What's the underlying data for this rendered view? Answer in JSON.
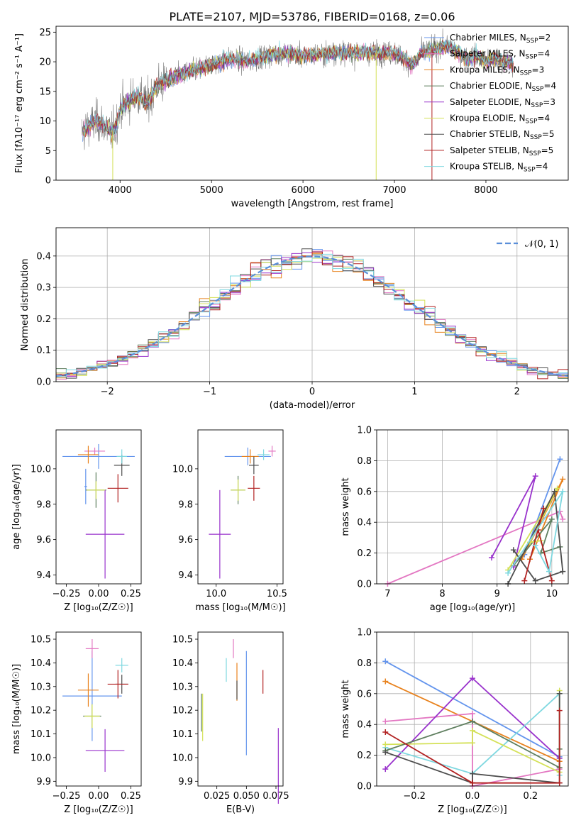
{
  "colors": {
    "cm": "#6495ED",
    "sm": "#E377C2",
    "km": "#E8821E",
    "ce": "#5F7F5F",
    "se": "#9932CC",
    "ke": "#D4E157",
    "cs": "#4D4D4D",
    "ss": "#B22222",
    "ks": "#7FD8E0",
    "gauss": "#5B8FD9",
    "grid": "#b0b0b0"
  },
  "chart_data": [
    {
      "id": "spectrum",
      "type": "line",
      "title": "PLATE=2107, MJD=53786, FIBERID=0168, z=0.06",
      "xlabel": "wavelength [Angstrom, rest frame]",
      "ylabel": "Flux [fλ10⁻¹⁷ erg cm⁻² s⁻¹ A⁻¹]",
      "xlim": [
        3300,
        8900
      ],
      "ylim": [
        0,
        26
      ],
      "xticks": [
        4000,
        5000,
        6000,
        7000,
        8000
      ],
      "yticks": [
        0,
        5,
        10,
        15,
        20,
        25
      ],
      "grid": false,
      "legend": "right",
      "continuum": {
        "x": [
          3580,
          3650,
          3750,
          3850,
          3900,
          3950,
          4000,
          4100,
          4200,
          4300,
          4400,
          4600,
          4800,
          5000,
          5200,
          5400,
          5600,
          5800,
          6000,
          6200,
          6400,
          6600,
          6800,
          7000,
          7100,
          7200,
          7300,
          7400,
          7500,
          7600,
          7700,
          7800,
          7900,
          8000,
          8100,
          8200,
          8300
        ],
        "y": [
          8,
          9,
          10,
          9,
          8,
          9,
          12,
          13.5,
          14.5,
          13,
          16,
          17.5,
          18.5,
          19.5,
          20.5,
          20,
          21,
          21.5,
          21,
          21.3,
          21.5,
          21.5,
          21.5,
          21.5,
          20.5,
          19.5,
          21.5,
          22,
          22.5,
          22.5,
          21.5,
          20.5,
          21,
          20,
          20.5,
          20,
          19.5
        ]
      },
      "series": [
        {
          "label": "Chabrier MILES, N",
          "sub": "SSP",
          "val": "=2",
          "color": "cm"
        },
        {
          "label": "Salpeter MILES, N",
          "sub": "SSP",
          "val": "=4",
          "color": "sm"
        },
        {
          "label": "Kroupa MILES, N",
          "sub": "SSP",
          "val": "=3",
          "color": "km"
        },
        {
          "label": "Chabrier ELODIE, N",
          "sub": "SSP",
          "val": "=4",
          "color": "ce"
        },
        {
          "label": "Salpeter ELODIE, N",
          "sub": "SSP",
          "val": "=3",
          "color": "se"
        },
        {
          "label": "Kroupa ELODIE, N",
          "sub": "SSP",
          "val": "=4",
          "color": "ke"
        },
        {
          "label": "Chabrier STELIB, N",
          "sub": "SSP",
          "val": "=5",
          "color": "cs"
        },
        {
          "label": "Salpeter STELIB, N",
          "sub": "SSP",
          "val": "=5",
          "color": "ss"
        },
        {
          "label": "Kroupa STELIB, N",
          "sub": "SSP",
          "val": "=4",
          "color": "ks"
        }
      ],
      "drops": [
        {
          "x": 6800,
          "color": "ke"
        },
        {
          "x": 7410,
          "color": "ss"
        },
        {
          "x": 3920,
          "color": "ke"
        }
      ]
    },
    {
      "id": "residuals",
      "type": "histogram",
      "xlabel": "(data-model)/error",
      "ylabel": "Normed distribution",
      "xlim": [
        -2.5,
        2.5
      ],
      "ylim": [
        0,
        0.49
      ],
      "xticks": [
        -2,
        -1,
        0,
        1,
        2
      ],
      "yticks": [
        0.0,
        0.1,
        0.2,
        0.3,
        0.4
      ],
      "grid": true,
      "legend": "top-right",
      "legend_label": "𝒩(0, 1)",
      "bin_width": 0.1
    },
    {
      "id": "z-age",
      "type": "errorbar",
      "xlabel": "Z [log₁₀(Z/Z☉)]",
      "ylabel": "age  [log₁₀(age/yr)]",
      "xlim": [
        -0.33,
        0.33
      ],
      "ylim": [
        9.35,
        10.22
      ],
      "xticks": [
        -0.25,
        0.0,
        0.25
      ],
      "yticks": [
        9.4,
        9.6,
        9.8,
        10.0
      ],
      "points": [
        {
          "x": 0.0,
          "y": 10.07,
          "xe": 0.28,
          "ye": 0.07,
          "color": "cm"
        },
        {
          "x": -0.03,
          "y": 10.1,
          "xe": 0.08,
          "ye": 0.02,
          "color": "sm"
        },
        {
          "x": -0.08,
          "y": 10.08,
          "xe": 0.08,
          "ye": 0.05,
          "color": "km"
        },
        {
          "x": -0.1,
          "y": 9.9,
          "xe": 0.01,
          "ye": 0.1,
          "color": "cm"
        },
        {
          "x": -0.02,
          "y": 9.88,
          "xe": 0.08,
          "ye": 0.1,
          "color": "ce"
        },
        {
          "x": 0.05,
          "y": 9.63,
          "xe": 0.15,
          "ye": 0.25,
          "color": "se"
        },
        {
          "x": -0.02,
          "y": 9.88,
          "xe": 0.07,
          "ye": 0.05,
          "color": "ke"
        },
        {
          "x": 0.18,
          "y": 10.02,
          "xe": 0.06,
          "ye": 0.06,
          "color": "cs"
        },
        {
          "x": 0.15,
          "y": 9.89,
          "xe": 0.08,
          "ye": 0.08,
          "color": "ss"
        },
        {
          "x": 0.18,
          "y": 10.07,
          "xe": 0.04,
          "ye": 0.04,
          "color": "ks"
        }
      ]
    },
    {
      "id": "mass-age",
      "type": "errorbar",
      "xlabel": "mass [log₁₀(M/M☉)]",
      "ylabel": "",
      "xlim": [
        9.85,
        10.55
      ],
      "ylim": [
        9.35,
        10.22
      ],
      "xticks": [
        10.0,
        10.5
      ],
      "yticks": [
        9.4,
        9.6,
        9.8,
        10.0
      ],
      "points": [
        {
          "x": 10.26,
          "y": 10.07,
          "xe": 0.19,
          "ye": 0.05,
          "color": "cm"
        },
        {
          "x": 10.46,
          "y": 10.1,
          "xe": 0.03,
          "ye": 0.03,
          "color": "sm"
        },
        {
          "x": 10.28,
          "y": 10.07,
          "xe": 0.07,
          "ye": 0.04,
          "color": "km"
        },
        {
          "x": 10.18,
          "y": 9.88,
          "xe": 0.06,
          "ye": 0.08,
          "color": "ce"
        },
        {
          "x": 10.03,
          "y": 9.63,
          "xe": 0.09,
          "ye": 0.25,
          "color": "se"
        },
        {
          "x": 10.18,
          "y": 9.88,
          "xe": 0.06,
          "ye": 0.06,
          "color": "ke"
        },
        {
          "x": 10.31,
          "y": 10.02,
          "xe": 0.04,
          "ye": 0.05,
          "color": "cs"
        },
        {
          "x": 10.31,
          "y": 9.89,
          "xe": 0.05,
          "ye": 0.07,
          "color": "ss"
        },
        {
          "x": 10.39,
          "y": 10.08,
          "xe": 0.05,
          "ye": 0.03,
          "color": "ks"
        }
      ]
    },
    {
      "id": "age-weight",
      "type": "line",
      "xlabel": "age  [log₁₀(age/yr)]",
      "ylabel": "mass weight",
      "xlim": [
        6.8,
        10.3
      ],
      "ylim": [
        0,
        1.0
      ],
      "xticks": [
        7,
        8,
        9,
        10
      ],
      "yticks": [
        0.0,
        0.2,
        0.4,
        0.6,
        0.8,
        1.0
      ],
      "grid": true,
      "series": [
        {
          "color": "cm",
          "x": [
            9.5,
            10.15
          ],
          "y": [
            0.19,
            0.81
          ]
        },
        {
          "color": "sm",
          "x": [
            7.0,
            10.15,
            10.2
          ],
          "y": [
            0.0,
            0.47,
            0.42
          ]
        },
        {
          "color": "km",
          "x": [
            9.45,
            10.2,
            9.6
          ],
          "y": [
            0.16,
            0.68,
            0.16
          ]
        },
        {
          "color": "ce",
          "x": [
            9.3,
            10.0,
            9.8,
            10.15
          ],
          "y": [
            0.12,
            0.42,
            0.2,
            0.24
          ]
        },
        {
          "color": "se",
          "x": [
            8.9,
            9.7,
            9.3
          ],
          "y": [
            0.17,
            0.7,
            0.11
          ]
        },
        {
          "color": "ke",
          "x": [
            9.2,
            10.1,
            9.6,
            9.8
          ],
          "y": [
            0.09,
            0.62,
            0.27,
            0.28
          ]
        },
        {
          "color": "cs",
          "x": [
            9.2,
            10.05,
            10.2,
            9.7,
            9.3
          ],
          "y": [
            0.0,
            0.6,
            0.08,
            0.02,
            0.22
          ]
        },
        {
          "color": "ss",
          "x": [
            9.5,
            9.85,
            9.75,
            10.0
          ],
          "y": [
            0.02,
            0.49,
            0.35,
            0.02
          ]
        },
        {
          "color": "ks",
          "x": [
            9.2,
            10.2,
            9.95,
            9.7
          ],
          "y": [
            0.07,
            0.6,
            0.08,
            0.25
          ]
        }
      ]
    },
    {
      "id": "z-mass",
      "type": "errorbar",
      "xlabel": "Z [log₁₀(Z/Z☉)]",
      "ylabel": "mass [log₁₀(M/M☉)]",
      "xlim": [
        -0.33,
        0.33
      ],
      "ylim": [
        9.88,
        10.53
      ],
      "xticks": [
        -0.25,
        0.0,
        0.25
      ],
      "yticks": [
        9.9,
        10.0,
        10.1,
        10.2,
        10.3,
        10.4,
        10.5
      ],
      "points": [
        {
          "x": -0.05,
          "y": 10.26,
          "xe": 0.23,
          "ye": 0.19,
          "color": "cm"
        },
        {
          "x": -0.05,
          "y": 10.46,
          "xe": 0.05,
          "ye": 0.04,
          "color": "sm"
        },
        {
          "x": -0.08,
          "y": 10.285,
          "xe": 0.08,
          "ye": 0.07,
          "color": "km"
        },
        {
          "x": -0.05,
          "y": 10.175,
          "xe": 0.07,
          "ye": 0.05,
          "color": "ce"
        },
        {
          "x": 0.05,
          "y": 10.03,
          "xe": 0.15,
          "ye": 0.09,
          "color": "se"
        },
        {
          "x": -0.05,
          "y": 10.175,
          "xe": 0.06,
          "ye": 0.05,
          "color": "ke"
        },
        {
          "x": 0.18,
          "y": 10.31,
          "xe": 0.05,
          "ye": 0.04,
          "color": "cs"
        },
        {
          "x": 0.15,
          "y": 10.31,
          "xe": 0.08,
          "ye": 0.06,
          "color": "ss"
        },
        {
          "x": 0.18,
          "y": 10.39,
          "xe": 0.05,
          "ye": 0.03,
          "color": "ks"
        }
      ]
    },
    {
      "id": "ebv-mass",
      "type": "errorbar",
      "xlabel": "E(B-V)",
      "ylabel": "",
      "xlim": [
        0.009,
        0.081
      ],
      "ylim": [
        9.88,
        10.53
      ],
      "xticks": [
        0.025,
        0.05,
        0.075
      ],
      "yticks": [
        9.9,
        10.0,
        10.1,
        10.2,
        10.3,
        10.4,
        10.5
      ],
      "points": [
        {
          "x": 0.05,
          "y": 10.23,
          "xe": 0,
          "ye": 0.22,
          "color": "cm"
        },
        {
          "x": 0.039,
          "y": 10.46,
          "xe": 0,
          "ye": 0.04,
          "color": "sm"
        },
        {
          "x": 0.042,
          "y": 10.32,
          "xe": 0,
          "ye": 0.08,
          "color": "km"
        },
        {
          "x": 0.012,
          "y": 10.19,
          "xe": 0,
          "ye": 0.08,
          "color": "ce"
        },
        {
          "x": 0.077,
          "y": 9.965,
          "xe": 0,
          "ye": 0.16,
          "color": "se"
        },
        {
          "x": 0.013,
          "y": 10.17,
          "xe": 0,
          "ye": 0.1,
          "color": "ke"
        },
        {
          "x": 0.042,
          "y": 10.285,
          "xe": 0,
          "ye": 0.04,
          "color": "cs"
        },
        {
          "x": 0.064,
          "y": 10.32,
          "xe": 0,
          "ye": 0.05,
          "color": "ss"
        },
        {
          "x": 0.033,
          "y": 10.37,
          "xe": 0,
          "ye": 0.05,
          "color": "ks"
        }
      ]
    },
    {
      "id": "z-weight",
      "type": "line",
      "xlabel": "Z [log₁₀(Z/Z☉)]",
      "ylabel": "mass weight",
      "xlim": [
        -0.33,
        0.33
      ],
      "ylim": [
        0,
        1.0
      ],
      "xticks": [
        -0.2,
        0.0,
        0.2
      ],
      "yticks": [
        0.0,
        0.2,
        0.4,
        0.6,
        0.8,
        1.0
      ],
      "grid": true,
      "series": [
        {
          "color": "cm",
          "x": [
            -0.3,
            0.3
          ],
          "y": [
            0.81,
            0.19
          ]
        },
        {
          "color": "km",
          "x": [
            -0.3,
            0.3
          ],
          "y": [
            0.68,
            0.16
          ]
        },
        {
          "color": "sm",
          "x": [
            -0.3,
            0.0,
            0.0,
            0.3
          ],
          "y": [
            0.42,
            0.47,
            0.0,
            0.11
          ]
        },
        {
          "color": "se",
          "x": [
            -0.3,
            0.0,
            0.3
          ],
          "y": [
            0.11,
            0.7,
            0.18
          ]
        },
        {
          "color": "ks",
          "x": [
            -0.3,
            0.0,
            0.3,
            0.3
          ],
          "y": [
            0.25,
            0.08,
            0.6,
            0.07
          ]
        },
        {
          "color": "ke",
          "x": [
            -0.3,
            0.0,
            0.0,
            0.3,
            0.3
          ],
          "y": [
            0.27,
            0.28,
            0.36,
            0.09,
            0.62
          ]
        },
        {
          "color": "ce",
          "x": [
            -0.3,
            0.0,
            0.3,
            0.3
          ],
          "y": [
            0.23,
            0.42,
            0.12,
            0.24
          ]
        },
        {
          "color": "cs",
          "x": [
            -0.3,
            0.0,
            0.0,
            0.3,
            0.3
          ],
          "y": [
            0.22,
            0.02,
            0.08,
            0.02,
            0.6
          ]
        },
        {
          "color": "ss",
          "x": [
            -0.3,
            0.0,
            0.0,
            0.3,
            0.3
          ],
          "y": [
            0.35,
            0.02,
            0.02,
            0.02,
            0.49
          ]
        }
      ]
    }
  ]
}
